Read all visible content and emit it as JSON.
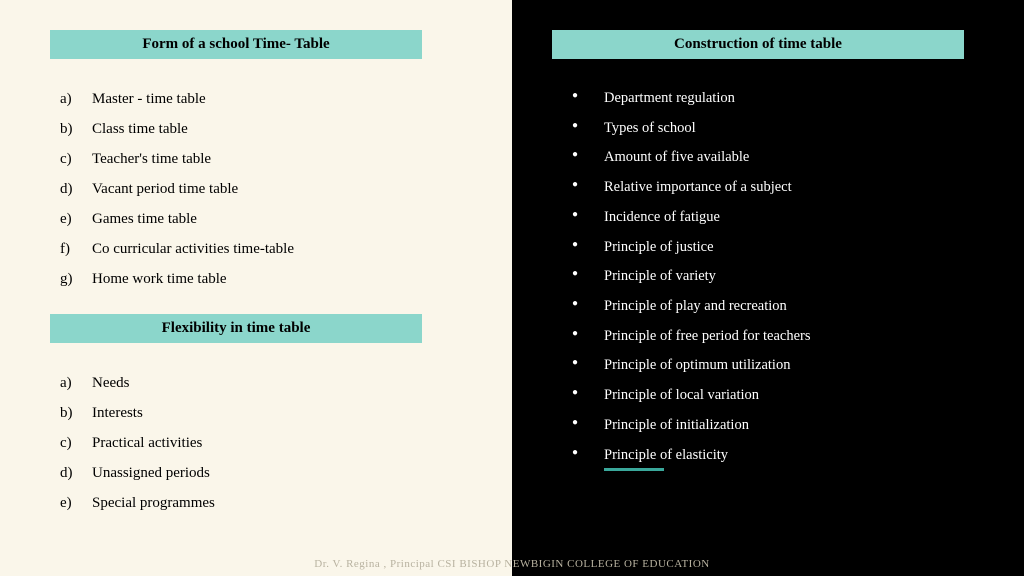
{
  "colors": {
    "left_bg": "#faf6ea",
    "right_bg": "#000000",
    "header_bg": "#8bd6cb",
    "header_text": "#000000",
    "left_text": "#000000",
    "right_text": "#ffffff",
    "accent_underline": "#3aa89b",
    "footer_text": "#b8b2a0"
  },
  "typography": {
    "header_fontsize": 15,
    "header_fontweight": "bold",
    "list_fontsize": 15,
    "right_list_fontsize": 14.5,
    "footer_fontsize": 11,
    "font_family": "Georgia, Times New Roman, serif"
  },
  "left": {
    "section1": {
      "title": "Form of a school Time- Table",
      "items": [
        "Master - time table",
        "Class time table",
        "Teacher's time table",
        "Vacant period time table",
        "Games time table",
        "Co curricular activities time-table",
        "Home work time table"
      ]
    },
    "section2": {
      "title": "Flexibility in time table",
      "items": [
        "Needs",
        "Interests",
        "Practical activities",
        "Unassigned periods",
        "Special programmes"
      ]
    }
  },
  "right": {
    "title": "Construction of time table",
    "items": [
      "Department regulation",
      "Types of school",
      "Amount of five available",
      "Relative importance of a subject",
      "Incidence of fatigue",
      "Principle of justice",
      "Principle of variety",
      "Principle of play and recreation",
      "Principle of free period for teachers",
      "Principle of optimum utilization",
      "Principle of local variation",
      "Principle of initialization",
      "Principle of elasticity"
    ]
  },
  "footer": "Dr. V. Regina , Principal CSI BISHOP NEWBIGIN COLLEGE OF EDUCATION"
}
